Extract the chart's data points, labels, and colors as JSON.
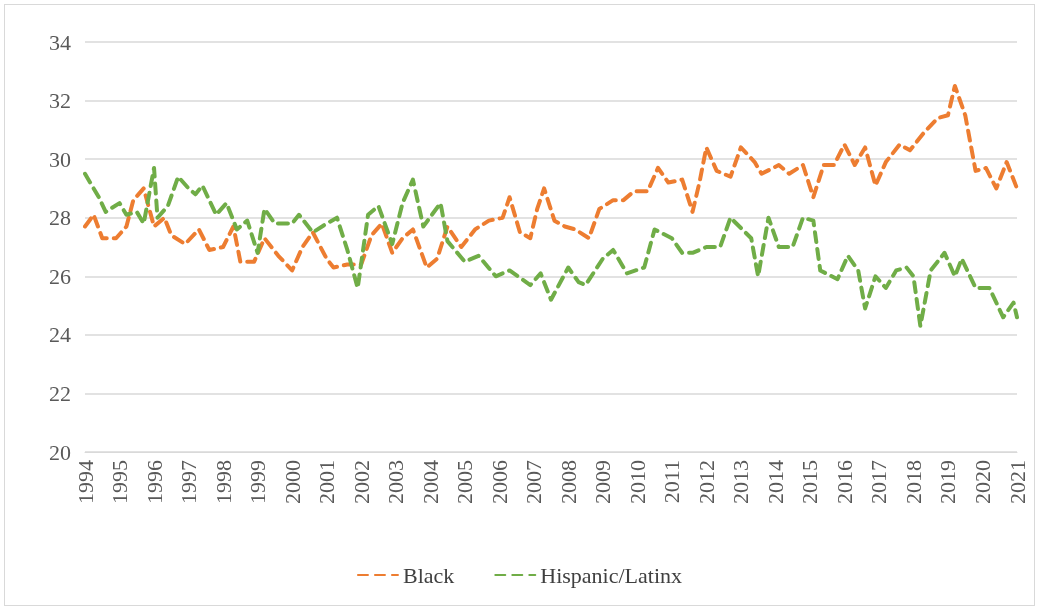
{
  "chart_data": {
    "type": "line",
    "xlim": [
      1994,
      2021
    ],
    "xticks": [
      1994,
      1995,
      1996,
      1997,
      1998,
      1999,
      2000,
      2001,
      2002,
      2003,
      2004,
      2005,
      2006,
      2007,
      2008,
      2009,
      2010,
      2011,
      2012,
      2013,
      2014,
      2015,
      2016,
      2017,
      2018,
      2019,
      2020,
      2021
    ],
    "ylim": [
      20,
      34
    ],
    "yticks": [
      20,
      22,
      24,
      26,
      28,
      30,
      32,
      34
    ],
    "grid": "y",
    "legend": "bottom",
    "marker": "none",
    "line_style": "dashed",
    "series": [
      {
        "name": "Black",
        "color": "#ed7d31",
        "x": [
          1994.0,
          1994.25,
          1994.5,
          1994.9,
          1995.2,
          1995.4,
          1995.7,
          1996.0,
          1996.3,
          1996.5,
          1996.9,
          1997.3,
          1997.6,
          1998.0,
          1998.3,
          1998.5,
          1998.9,
          1999.2,
          1999.6,
          2000.0,
          2000.3,
          2000.6,
          2001.0,
          2001.2,
          2001.6,
          2002.0,
          2002.3,
          2002.6,
          2002.9,
          2003.2,
          2003.5,
          2003.9,
          2004.2,
          2004.5,
          2004.9,
          2005.3,
          2005.7,
          2006.1,
          2006.3,
          2006.6,
          2006.9,
          2007.1,
          2007.3,
          2007.6,
          2007.9,
          2008.2,
          2008.6,
          2008.9,
          2009.3,
          2009.6,
          2009.9,
          2010.3,
          2010.6,
          2010.9,
          2011.3,
          2011.6,
          2011.8,
          2012.0,
          2012.3,
          2012.7,
          2013.0,
          2013.4,
          2013.6,
          2014.1,
          2014.4,
          2014.8,
          2015.1,
          2015.4,
          2015.7,
          2016.0,
          2016.3,
          2016.6,
          2016.9,
          2017.2,
          2017.6,
          2017.9,
          2018.3,
          2018.7,
          2019.0,
          2019.2,
          2019.5,
          2019.8,
          2020.1,
          2020.4,
          2020.7,
          2021.0
        ],
        "values": [
          27.7,
          28.1,
          27.3,
          27.3,
          27.7,
          28.6,
          29.0,
          27.7,
          28.0,
          27.4,
          27.1,
          27.6,
          26.9,
          27.0,
          27.7,
          26.5,
          26.5,
          27.3,
          26.7,
          26.2,
          27.0,
          27.5,
          26.6,
          26.3,
          26.4,
          26.4,
          27.4,
          27.8,
          26.8,
          27.3,
          27.6,
          26.3,
          26.6,
          27.7,
          27.0,
          27.6,
          27.9,
          28.0,
          28.7,
          27.5,
          27.3,
          28.3,
          29.0,
          27.9,
          27.7,
          27.6,
          27.3,
          28.3,
          28.6,
          28.6,
          28.9,
          28.9,
          29.7,
          29.2,
          29.3,
          28.2,
          29.2,
          30.4,
          29.6,
          29.4,
          30.4,
          29.9,
          29.5,
          29.8,
          29.5,
          29.8,
          28.7,
          29.8,
          29.8,
          30.5,
          29.8,
          30.4,
          29.1,
          29.9,
          30.5,
          30.3,
          30.9,
          31.4,
          31.5,
          32.5,
          31.5,
          29.6,
          29.7,
          29.0,
          29.9,
          29.0
        ]
      },
      {
        "name": "Hispanic/Latinx",
        "color": "#70ad47",
        "x": [
          1994.0,
          1994.4,
          1994.6,
          1995.0,
          1995.2,
          1995.5,
          1995.7,
          1996.0,
          1996.1,
          1996.4,
          1996.7,
          1997.0,
          1997.2,
          1997.4,
          1997.8,
          1998.1,
          1998.4,
          1998.7,
          1999.0,
          1999.2,
          1999.5,
          2000.0,
          2000.2,
          2000.6,
          2001.0,
          2001.3,
          2001.6,
          2001.9,
          2002.2,
          2002.5,
          2002.9,
          2003.2,
          2003.5,
          2003.8,
          2004.3,
          2004.5,
          2005.0,
          2005.4,
          2005.9,
          2006.3,
          2006.9,
          2007.2,
          2007.5,
          2008.0,
          2008.3,
          2008.5,
          2009.0,
          2009.3,
          2009.7,
          2010.2,
          2010.5,
          2011.0,
          2011.3,
          2011.6,
          2012.0,
          2012.4,
          2012.7,
          2013.3,
          2013.5,
          2013.8,
          2014.1,
          2014.5,
          2014.8,
          2015.1,
          2015.3,
          2015.8,
          2016.1,
          2016.4,
          2016.6,
          2016.9,
          2017.2,
          2017.5,
          2017.8,
          2018.0,
          2018.2,
          2018.5,
          2018.9,
          2019.2,
          2019.4,
          2019.8,
          2020.2,
          2020.6,
          2020.9,
          2021.0
        ],
        "values": [
          29.5,
          28.7,
          28.2,
          28.5,
          28.1,
          28.2,
          27.8,
          29.7,
          28.0,
          28.4,
          29.4,
          29.0,
          28.8,
          29.1,
          28.1,
          28.5,
          27.6,
          27.9,
          26.8,
          28.3,
          27.8,
          27.8,
          28.1,
          27.5,
          27.8,
          28.0,
          26.9,
          25.6,
          28.1,
          28.4,
          27.1,
          28.5,
          29.3,
          27.7,
          28.5,
          27.2,
          26.5,
          26.7,
          26.0,
          26.2,
          25.7,
          26.1,
          25.2,
          26.3,
          25.8,
          25.7,
          26.6,
          26.9,
          26.1,
          26.3,
          27.6,
          27.3,
          26.8,
          26.8,
          27.0,
          27.0,
          28.0,
          27.3,
          26.0,
          28.0,
          27.0,
          27.0,
          28.0,
          27.9,
          26.2,
          25.9,
          26.7,
          26.2,
          24.9,
          26.0,
          25.6,
          26.2,
          26.3,
          26.0,
          24.3,
          26.2,
          26.8,
          26.0,
          26.6,
          25.6,
          25.6,
          24.6,
          25.1,
          24.6
        ]
      }
    ]
  }
}
